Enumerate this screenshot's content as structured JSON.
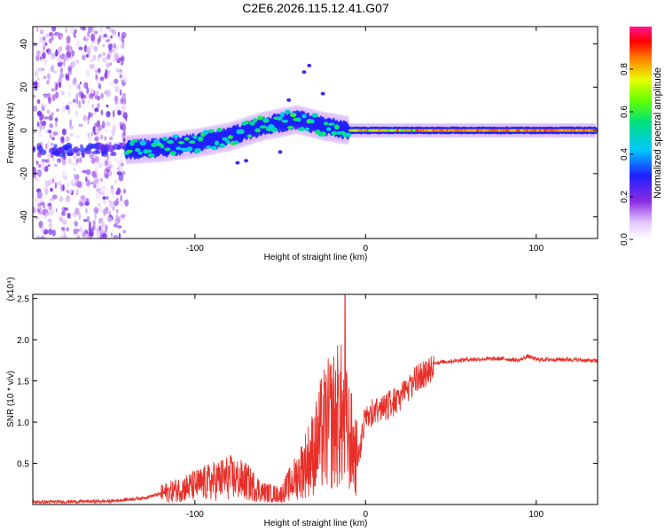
{
  "title": "C2E6.2026.115.12.41.G07",
  "colors": {
    "snr_line": "#e8302a",
    "axis": "#000000",
    "background": "#ffffff"
  },
  "chart_data": [
    {
      "type": "heatmap",
      "title": "C2E6.2026.115.12.41.G07",
      "xlabel": "Height of straight line (km)",
      "ylabel": "Frequency (Hz)",
      "xlim": [
        -195,
        136
      ],
      "ylim": [
        -50,
        48
      ],
      "x_ticks": [
        -100,
        0,
        100
      ],
      "x_tick_labels": [
        "-100",
        "0",
        "100"
      ],
      "y_ticks": [
        -40,
        -20,
        0,
        20,
        40
      ],
      "y_tick_labels": [
        "-40",
        "-20",
        "0",
        "20",
        "40"
      ],
      "colorbar": {
        "label": "Normalized spectral amplitude",
        "range": [
          0,
          1
        ],
        "ticks": [
          0,
          0.2,
          0.4,
          0.6,
          0.8
        ],
        "tick_labels": [
          "0.0",
          "0.2",
          "0.4",
          "0.6",
          "0.8"
        ],
        "colormap": "rainbow (white-violet-blue-cyan-green-yellow-red-magenta)"
      },
      "features": [
        {
          "name": "noise region",
          "x_range": [
            -195,
            -140
          ],
          "y_range": [
            -50,
            48
          ],
          "amplitude": 0.1
        },
        {
          "name": "signal trace",
          "points": [
            [
              -140,
              -9
            ],
            [
              -120,
              -8
            ],
            [
              -100,
              -6
            ],
            [
              -80,
              -3
            ],
            [
              -60,
              2
            ],
            [
              -40,
              5
            ],
            [
              -25,
              2
            ],
            [
              -10,
              0
            ],
            [
              0,
              0
            ],
            [
              135,
              0
            ]
          ],
          "amplitude_start": 0.45,
          "amplitude_end": 0.9
        }
      ]
    },
    {
      "type": "line",
      "xlabel": "Height of straight line (km)",
      "ylabel": "SNR (10 * v/v)",
      "y_scale_label": "(x10⁴)",
      "xlim": [
        -195,
        136
      ],
      "ylim": [
        0,
        2.55
      ],
      "x_ticks": [
        -100,
        0,
        100
      ],
      "x_tick_labels": [
        "-100",
        "0",
        "100"
      ],
      "y_ticks": [
        0.5,
        1.0,
        1.5,
        2.0,
        2.5
      ],
      "y_tick_labels": [
        "0.5",
        "1.0",
        "1.5",
        "2.0",
        "2.5"
      ],
      "series": [
        {
          "name": "SNR",
          "envelope_x": [
            -195,
            -150,
            -130,
            -110,
            -90,
            -80,
            -70,
            -60,
            -50,
            -40,
            -30,
            -25,
            -20,
            -15,
            -10,
            -5,
            0,
            10,
            20,
            30,
            40,
            60,
            80,
            90,
            95,
            100,
            120,
            136
          ],
          "envelope_y": [
            0.03,
            0.04,
            0.08,
            0.18,
            0.28,
            0.33,
            0.28,
            0.15,
            0.12,
            0.35,
            0.65,
            0.9,
            1.0,
            1.1,
            0.85,
            0.55,
            1.15,
            1.25,
            1.35,
            1.6,
            1.72,
            1.76,
            1.77,
            1.75,
            1.8,
            1.76,
            1.76,
            1.74
          ],
          "spike": {
            "x": -12,
            "y": 2.55
          }
        }
      ]
    }
  ]
}
